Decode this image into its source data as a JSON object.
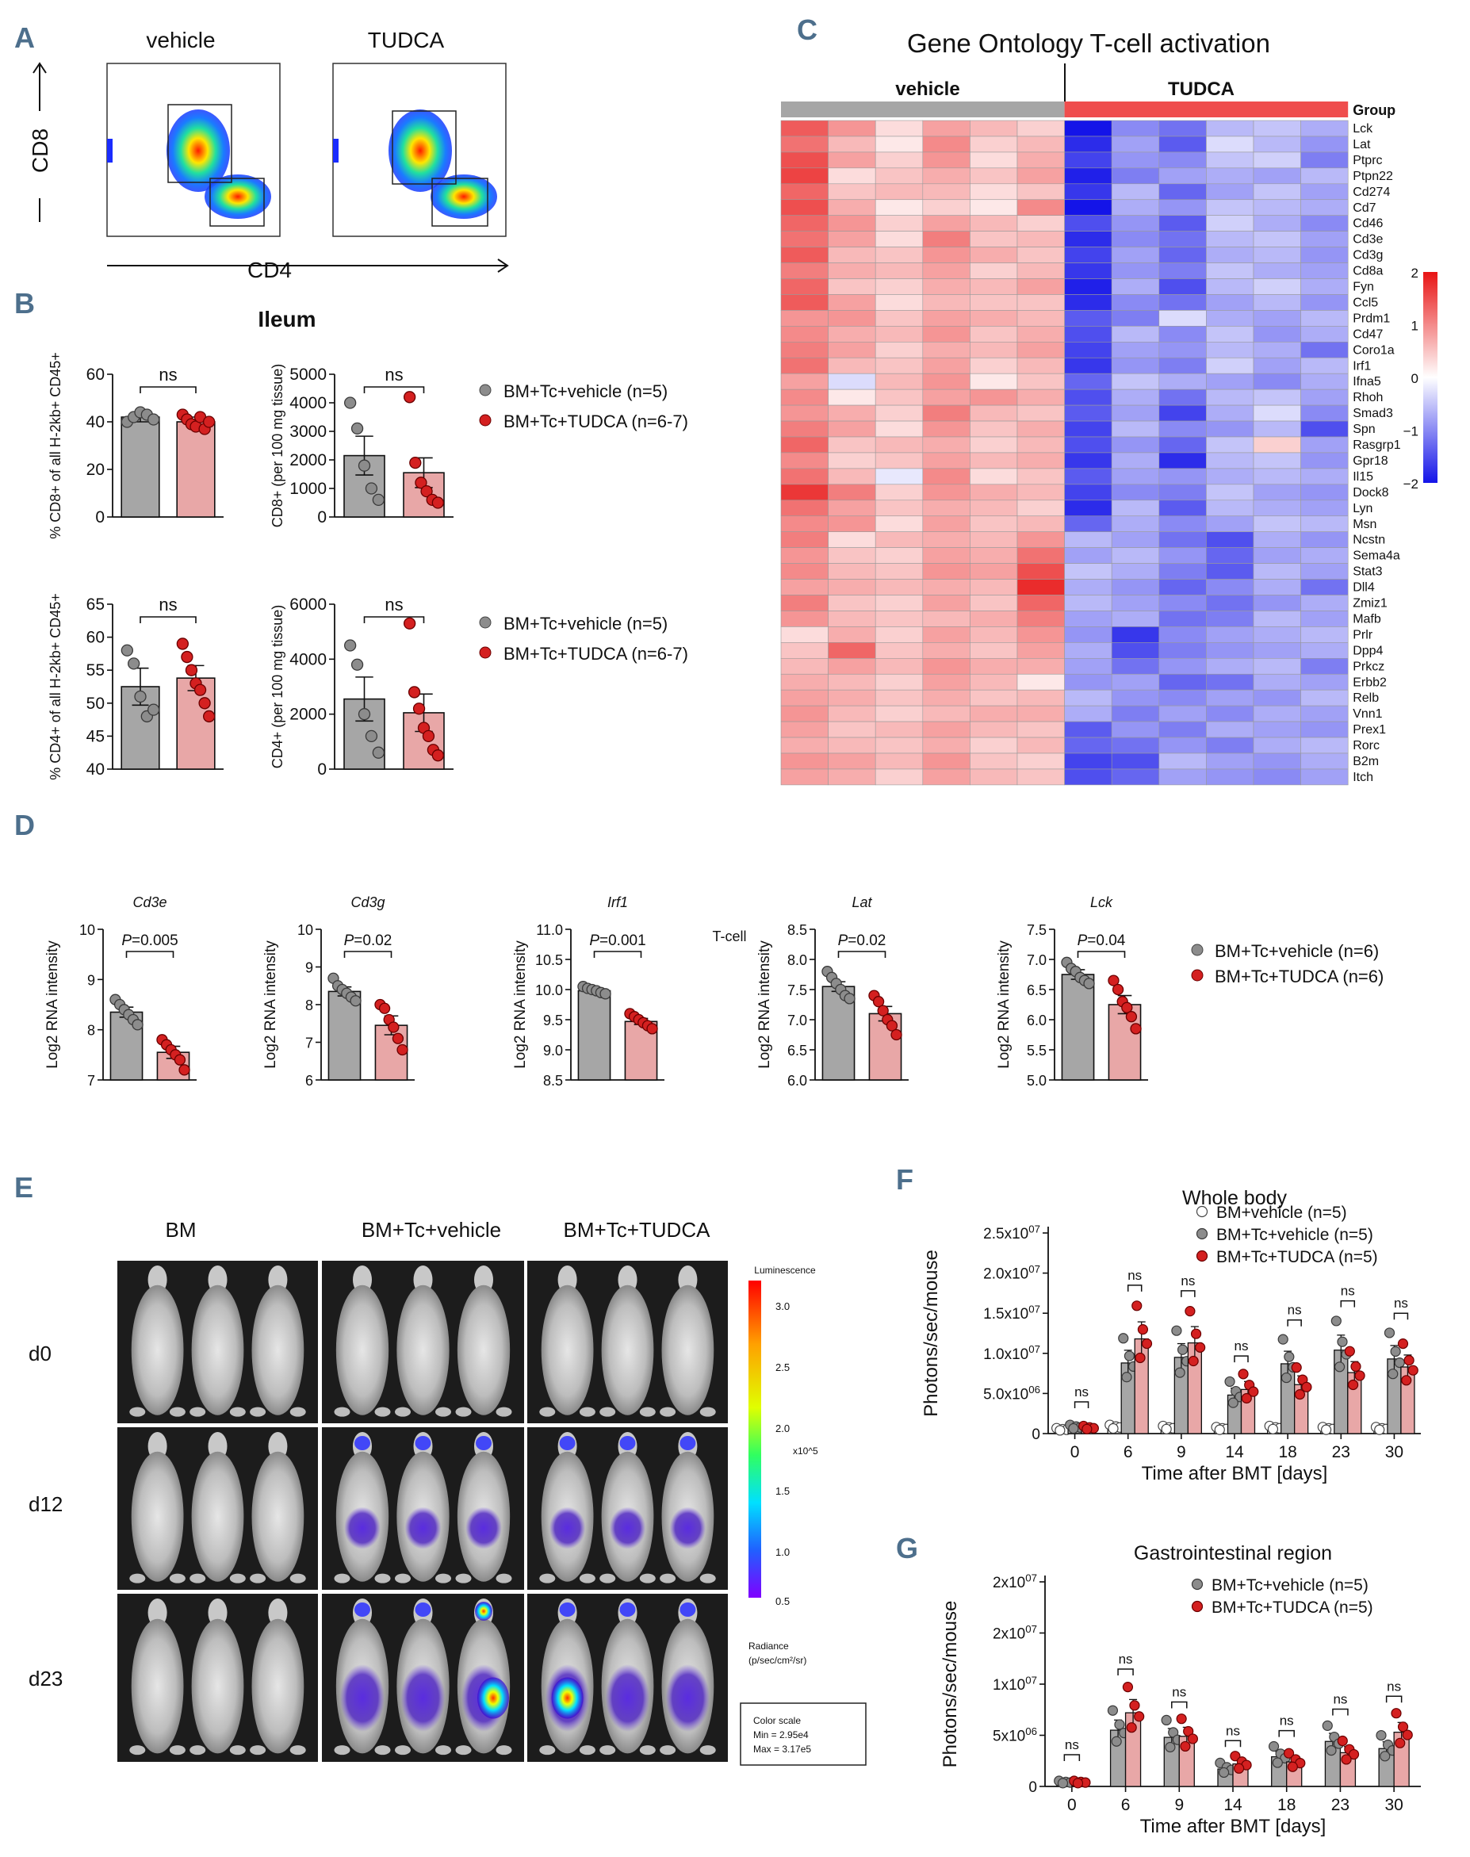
{
  "panel_letters": [
    "A",
    "B",
    "C",
    "D",
    "E",
    "F",
    "G"
  ],
  "colors": {
    "vehicle": "#a6a6a6",
    "tudca": "#e8a7a7",
    "dot_vehicle": "#8c8c8c",
    "dot_tudca": "#d42020",
    "letter": "#4d6f8c"
  },
  "panelA": {
    "labels": [
      "vehicle",
      "TUDCA"
    ],
    "xaxis": "CD4",
    "yaxis": "CD8"
  },
  "panelB": {
    "title": "Ileum",
    "legend_top": [
      "BM+Tc+vehicle (n=5)",
      "BM+Tc+TUDCA (n=6-7)"
    ],
    "legend_bottom": [
      "BM+Tc+vehicle (n=5)",
      "BM+Tc+TUDCA (n=6-7)"
    ]
  },
  "chart_data": [
    {
      "id": "B1",
      "type": "bar",
      "title": "",
      "ylabel": "% CD8+ of all H-2kb+ CD45+",
      "ylim": [
        0,
        60
      ],
      "yticks": [
        0,
        20,
        40,
        60
      ],
      "categories": [
        "BM+Tc+vehicle",
        "BM+Tc+TUDCA"
      ],
      "values": [
        42,
        40
      ],
      "errors": [
        2,
        2
      ],
      "points": [
        [
          40,
          42,
          44,
          43,
          41
        ],
        [
          43,
          41,
          39,
          38,
          42,
          37,
          40
        ]
      ],
      "sig": "ns"
    },
    {
      "id": "B2",
      "type": "bar",
      "title": "",
      "ylabel": "CD8+ (per 100 mg tissue)",
      "ylim": [
        0,
        5000
      ],
      "yticks": [
        0,
        1000,
        2000,
        3000,
        4000,
        5000
      ],
      "categories": [
        "BM+Tc+vehicle",
        "BM+Tc+TUDCA"
      ],
      "values": [
        2150,
        1550
      ],
      "errors": [
        680,
        520
      ],
      "points": [
        [
          4000,
          3100,
          1800,
          1000,
          600
        ],
        [
          4200,
          1900,
          1200,
          900,
          600,
          500
        ]
      ],
      "sig": "ns"
    },
    {
      "id": "B3",
      "type": "bar",
      "title": "",
      "ylabel": "% CD4+ of all H-2kb+ CD45+",
      "ylim": [
        40,
        65
      ],
      "yticks": [
        40,
        45,
        50,
        55,
        60,
        65
      ],
      "categories": [
        "BM+Tc+vehicle",
        "BM+Tc+TUDCA"
      ],
      "values": [
        52.5,
        53.8
      ],
      "errors": [
        2.8,
        1.9
      ],
      "points": [
        [
          58,
          56,
          51,
          48,
          49
        ],
        [
          59,
          57,
          55,
          53,
          52,
          50,
          48
        ]
      ],
      "sig": "ns"
    },
    {
      "id": "B4",
      "type": "bar",
      "title": "",
      "ylabel": "CD4+ (per 100 mg tissue)",
      "ylim": [
        0,
        6000
      ],
      "yticks": [
        0,
        2000,
        4000,
        6000
      ],
      "categories": [
        "BM+Tc+vehicle",
        "BM+Tc+TUDCA"
      ],
      "values": [
        2550,
        2050
      ],
      "errors": [
        800,
        680
      ],
      "points": [
        [
          4500,
          3800,
          2000,
          1200,
          600
        ],
        [
          5300,
          2800,
          2200,
          1500,
          1200,
          700,
          500
        ]
      ],
      "sig": "ns"
    },
    {
      "id": "C",
      "type": "heatmap",
      "title": "Gene Ontology T-cell activation",
      "groups": [
        "vehicle",
        "TUDCA"
      ],
      "group_header": "Group",
      "rows": [
        "Lck",
        "Lat",
        "Ptprc",
        "Ptpn22",
        "Cd274",
        "Cd7",
        "Cd46",
        "Cd3e",
        "Cd3g",
        "Cd8a",
        "Fyn",
        "Ccl5",
        "Prdm1",
        "Cd47",
        "Coro1a",
        "Irf1",
        "Ifna5",
        "Rhoh",
        "Smad3",
        "Spn",
        "Rasgrp1",
        "Gpr18",
        "Il15",
        "Dock8",
        "Lyn",
        "Msn",
        "Ncstn",
        "Sema4a",
        "Stat3",
        "Dll4",
        "Zmiz1",
        "Mafb",
        "Prlr",
        "Dpp4",
        "Prkcz",
        "Erbb2",
        "Relb",
        "Vnn1",
        "Prex1",
        "Rorc",
        "B2m",
        "Itch"
      ],
      "colorbar": {
        "min": -2,
        "max": 2,
        "ticks": [
          "2",
          "1",
          "0",
          "−1",
          "−2"
        ]
      },
      "values": [
        [
          1.4,
          0.9,
          0.3,
          0.8,
          0.6,
          0.4,
          -2.0,
          -1.0,
          -1.2,
          -0.6,
          -0.5,
          -0.7
        ],
        [
          1.2,
          0.6,
          0.2,
          1.0,
          0.4,
          0.6,
          -1.8,
          -0.8,
          -1.4,
          -0.3,
          -0.6,
          -0.9
        ],
        [
          1.5,
          0.8,
          0.4,
          0.9,
          0.3,
          0.7,
          -1.6,
          -0.9,
          -1.0,
          -0.5,
          -0.4,
          -1.1
        ],
        [
          1.6,
          0.3,
          0.5,
          0.7,
          0.5,
          0.8,
          -1.9,
          -1.1,
          -0.8,
          -0.7,
          -0.8,
          -0.6
        ],
        [
          1.3,
          0.5,
          0.6,
          0.6,
          0.3,
          0.5,
          -1.7,
          -0.6,
          -1.3,
          -0.8,
          -0.5,
          -0.8
        ],
        [
          1.5,
          0.7,
          0.2,
          0.4,
          0.2,
          1.0,
          -2.0,
          -0.7,
          -0.9,
          -0.5,
          -0.6,
          -0.7
        ],
        [
          1.3,
          0.9,
          0.4,
          0.8,
          0.6,
          0.4,
          -1.5,
          -0.9,
          -1.4,
          -0.4,
          -0.7,
          -1.0
        ],
        [
          1.2,
          0.8,
          0.3,
          1.1,
          0.5,
          0.6,
          -1.8,
          -1.0,
          -1.2,
          -0.6,
          -0.5,
          -0.8
        ],
        [
          1.4,
          0.6,
          0.5,
          0.9,
          0.7,
          0.5,
          -1.6,
          -0.8,
          -1.3,
          -0.7,
          -0.6,
          -0.9
        ],
        [
          1.1,
          0.7,
          0.6,
          0.8,
          0.4,
          0.6,
          -1.7,
          -0.9,
          -1.1,
          -0.5,
          -0.7,
          -0.8
        ],
        [
          1.3,
          0.5,
          0.4,
          0.7,
          0.6,
          0.8,
          -1.9,
          -0.7,
          -1.5,
          -0.6,
          -0.4,
          -0.7
        ],
        [
          1.4,
          0.8,
          0.3,
          0.6,
          0.5,
          0.5,
          -1.8,
          -1.0,
          -1.2,
          -0.8,
          -0.6,
          -0.9
        ],
        [
          0.9,
          0.9,
          0.5,
          0.8,
          0.7,
          0.6,
          -1.4,
          -1.1,
          -0.3,
          -0.7,
          -0.8,
          -0.6
        ],
        [
          1.0,
          0.7,
          0.6,
          0.9,
          0.5,
          0.7,
          -1.5,
          -0.6,
          -1.0,
          -0.5,
          -0.9,
          -0.7
        ],
        [
          1.1,
          0.8,
          0.4,
          0.7,
          0.6,
          0.8,
          -1.6,
          -0.8,
          -0.9,
          -0.6,
          -0.7,
          -1.2
        ],
        [
          1.2,
          0.6,
          0.5,
          0.8,
          0.4,
          0.6,
          -1.7,
          -0.9,
          -1.1,
          -0.4,
          -0.8,
          -0.6
        ],
        [
          0.8,
          -0.3,
          0.6,
          0.9,
          0.2,
          0.5,
          -1.3,
          -0.5,
          -0.7,
          -0.8,
          -1.0,
          -0.7
        ],
        [
          1.0,
          0.2,
          0.5,
          0.8,
          0.9,
          0.7,
          -1.5,
          -0.7,
          -1.2,
          -0.6,
          -0.5,
          -0.8
        ],
        [
          0.9,
          0.7,
          0.4,
          1.1,
          0.6,
          0.5,
          -1.4,
          -0.8,
          -1.6,
          -0.7,
          -0.3,
          -1.0
        ],
        [
          1.1,
          0.8,
          0.3,
          0.9,
          0.5,
          0.7,
          -1.6,
          -0.6,
          -1.0,
          -0.9,
          -0.6,
          -1.5
        ],
        [
          1.3,
          0.5,
          0.6,
          0.7,
          0.4,
          0.6,
          -1.5,
          -0.9,
          -1.3,
          -0.5,
          0.4,
          -0.8
        ],
        [
          1.0,
          0.4,
          0.5,
          0.8,
          0.6,
          0.7,
          -1.7,
          -0.7,
          -1.8,
          -0.6,
          -0.5,
          -0.9
        ],
        [
          1.2,
          0.6,
          -0.2,
          1.0,
          0.3,
          0.5,
          -1.4,
          -0.8,
          -0.9,
          -0.7,
          -0.6,
          -0.7
        ],
        [
          1.7,
          1.1,
          0.4,
          0.9,
          0.7,
          0.6,
          -1.6,
          -1.0,
          -1.1,
          -0.5,
          -0.8,
          -0.9
        ],
        [
          1.2,
          0.8,
          0.5,
          0.7,
          0.6,
          0.4,
          -1.8,
          -0.6,
          -1.4,
          -0.6,
          -0.7,
          -0.8
        ],
        [
          1.0,
          0.9,
          0.3,
          0.8,
          0.5,
          0.6,
          -1.3,
          -0.7,
          -1.0,
          -0.8,
          -0.5,
          -0.6
        ],
        [
          1.1,
          0.3,
          0.6,
          0.7,
          0.6,
          0.9,
          -0.6,
          -0.8,
          -1.2,
          -1.5,
          -0.7,
          -0.9
        ],
        [
          0.9,
          0.5,
          0.4,
          0.8,
          0.7,
          1.2,
          -0.8,
          -0.6,
          -0.9,
          -1.3,
          -0.8,
          -0.7
        ],
        [
          1.0,
          0.6,
          0.5,
          0.9,
          0.8,
          1.5,
          -0.5,
          -0.7,
          -1.1,
          -1.4,
          -0.6,
          -0.8
        ],
        [
          0.8,
          0.7,
          0.6,
          0.7,
          0.6,
          1.8,
          -0.7,
          -0.9,
          -1.3,
          -1.0,
          -0.7,
          -1.2
        ],
        [
          1.1,
          0.5,
          0.4,
          0.8,
          0.5,
          1.3,
          -0.6,
          -0.8,
          -1.0,
          -1.2,
          -0.9,
          -0.7
        ],
        [
          0.9,
          0.6,
          0.5,
          0.6,
          0.7,
          1.1,
          -0.8,
          -0.7,
          -1.2,
          -1.1,
          -0.6,
          -0.8
        ],
        [
          0.3,
          0.7,
          0.4,
          0.8,
          0.6,
          0.9,
          -0.9,
          -1.7,
          -1.0,
          -0.8,
          -0.7,
          -0.6
        ],
        [
          0.5,
          1.3,
          0.5,
          0.7,
          0.5,
          0.8,
          -0.7,
          -1.5,
          -1.1,
          -0.9,
          -0.8,
          -0.7
        ],
        [
          0.6,
          0.8,
          0.6,
          0.9,
          0.7,
          0.7,
          -0.8,
          -1.2,
          -0.9,
          -0.7,
          -0.6,
          -1.1
        ],
        [
          0.7,
          0.6,
          0.4,
          0.8,
          0.6,
          0.2,
          -0.9,
          -0.8,
          -1.3,
          -1.2,
          -0.7,
          -0.8
        ],
        [
          0.8,
          0.7,
          0.5,
          0.7,
          0.5,
          0.6,
          -0.6,
          -0.9,
          -1.0,
          -0.8,
          -0.9,
          -0.6
        ],
        [
          0.9,
          0.6,
          0.4,
          0.6,
          0.7,
          0.7,
          -0.7,
          -1.1,
          -0.8,
          -1.0,
          -0.7,
          -0.8
        ],
        [
          0.8,
          0.5,
          0.6,
          0.8,
          0.6,
          0.5,
          -1.4,
          -0.9,
          -1.1,
          -0.7,
          -0.8,
          -0.9
        ],
        [
          0.7,
          0.6,
          0.5,
          0.7,
          0.4,
          0.6,
          -1.3,
          -1.2,
          -0.9,
          -1.1,
          -0.7,
          -0.6
        ],
        [
          0.9,
          0.8,
          0.6,
          0.9,
          0.5,
          0.4,
          -1.6,
          -1.5,
          -0.6,
          -0.8,
          -0.9,
          -0.7
        ],
        [
          0.8,
          0.7,
          0.4,
          0.8,
          0.6,
          0.5,
          -1.5,
          -1.3,
          -0.8,
          -0.9,
          -1.0,
          -0.8
        ]
      ]
    },
    {
      "id": "D1",
      "type": "bar",
      "title": "Cd3e",
      "ylabel": "Log2 RNA intensity",
      "ylim": [
        7,
        10
      ],
      "yticks": [
        7,
        8,
        9,
        10
      ],
      "categories": [
        "BM+Tc+vehicle",
        "BM+Tc+TUDCA"
      ],
      "values": [
        8.35,
        7.55
      ],
      "errors": [
        0.1,
        0.12
      ],
      "points": [
        [
          8.6,
          8.5,
          8.4,
          8.3,
          8.2,
          8.1
        ],
        [
          7.8,
          7.7,
          7.6,
          7.5,
          7.4,
          7.2
        ]
      ],
      "sig": "P=0.005"
    },
    {
      "id": "D2",
      "type": "bar",
      "title": "Cd3g",
      "ylabel": "Log2 RNA intensity",
      "ylim": [
        6,
        10
      ],
      "yticks": [
        6,
        7,
        8,
        9,
        10
      ],
      "categories": [
        "BM+Tc+vehicle",
        "BM+Tc+TUDCA"
      ],
      "values": [
        8.35,
        7.45
      ],
      "errors": [
        0.12,
        0.25
      ],
      "points": [
        [
          8.7,
          8.5,
          8.4,
          8.3,
          8.2,
          8.1
        ],
        [
          8.0,
          7.9,
          7.6,
          7.4,
          7.1,
          6.8
        ]
      ],
      "sig": "P=0.02"
    },
    {
      "id": "D3",
      "type": "bar",
      "title": "Irf1",
      "ylabel": "Log2 RNA intensity",
      "ylim": [
        8.5,
        11.0
      ],
      "yticks": [
        8.5,
        9.0,
        9.5,
        10.0,
        10.5,
        11.0
      ],
      "categories": [
        "BM+Tc+vehicle",
        "BM+Tc+TUDCA"
      ],
      "values": [
        9.98,
        9.47
      ],
      "errors": [
        0.03,
        0.05
      ],
      "points": [
        [
          10.05,
          10.02,
          10.0,
          9.98,
          9.95,
          9.93
        ],
        [
          9.6,
          9.55,
          9.5,
          9.45,
          9.4,
          9.35
        ]
      ],
      "sig": "P=0.001"
    },
    {
      "id": "D4",
      "type": "bar",
      "title": "Lat",
      "ylabel": "Log2 RNA intensity",
      "ylim": [
        6.0,
        8.5
      ],
      "yticks": [
        6.0,
        6.5,
        7.0,
        7.5,
        8.0,
        8.5
      ],
      "categories": [
        "BM+Tc+vehicle",
        "BM+Tc+TUDCA"
      ],
      "values": [
        7.55,
        7.1
      ],
      "errors": [
        0.08,
        0.12
      ],
      "points": [
        [
          7.8,
          7.7,
          7.6,
          7.5,
          7.4,
          7.35
        ],
        [
          7.4,
          7.3,
          7.15,
          7.0,
          6.9,
          6.75
        ]
      ],
      "sig": "P=0.02"
    },
    {
      "id": "D5",
      "type": "bar",
      "title": "Lck",
      "ylabel": "Log2 RNA intensity",
      "ylim": [
        5.0,
        7.5
      ],
      "yticks": [
        5.0,
        5.5,
        6.0,
        6.5,
        7.0,
        7.5
      ],
      "categories": [
        "BM+Tc+vehicle",
        "BM+Tc+TUDCA"
      ],
      "values": [
        6.75,
        6.25
      ],
      "errors": [
        0.08,
        0.15
      ],
      "points": [
        [
          6.95,
          6.85,
          6.8,
          6.7,
          6.65,
          6.6
        ],
        [
          6.65,
          6.5,
          6.3,
          6.2,
          6.05,
          5.85
        ]
      ],
      "sig": "P=0.04"
    },
    {
      "id": "F",
      "type": "bar",
      "title": "Whole body",
      "xlabel": "Time after BMT [days]",
      "ylabel": "Photons/sec/mouse",
      "ylim": [
        0,
        25000000
      ],
      "ytick_labels": [
        "0",
        "5.0x10^06",
        "1.0x10^07",
        "1.5x10^07",
        "2.0x10^07",
        "2.5x10^07"
      ],
      "categories": [
        "0",
        "6",
        "9",
        "14",
        "18",
        "23",
        "30"
      ],
      "series": [
        {
          "name": "BM+vehicle (n=5)",
          "values": [
            500000,
            800000,
            700000,
            600000,
            700000,
            600000,
            600000
          ]
        },
        {
          "name": "BM+Tc+vehicle (n=5)",
          "values": [
            800000,
            8800000,
            9500000,
            4800000,
            8700000,
            10400000,
            9300000
          ]
        },
        {
          "name": "BM+Tc+TUDCA (n=5)",
          "values": [
            700000,
            11800000,
            11300000,
            5500000,
            6100000,
            7600000,
            8300000
          ]
        }
      ],
      "sig": [
        "ns",
        "ns",
        "ns",
        "ns",
        "ns",
        "ns",
        "ns"
      ]
    },
    {
      "id": "G",
      "type": "bar",
      "title": "Gastrointestinal region",
      "xlabel": "Time after BMT [days]",
      "ylabel": "Photons/sec/mouse",
      "ylim": [
        0,
        20000000
      ],
      "ytick_labels": [
        "0",
        "5x10^06",
        "1x10^07",
        "2x10^07",
        "2x10^07"
      ],
      "categories": [
        "0",
        "6",
        "9",
        "14",
        "18",
        "23",
        "30"
      ],
      "series": [
        {
          "name": "BM+Tc+vehicle (n=5)",
          "values": [
            400000,
            5500000,
            4800000,
            1700000,
            2900000,
            4400000,
            3700000
          ]
        },
        {
          "name": "BM+Tc+TUDCA (n=5)",
          "values": [
            400000,
            7200000,
            4900000,
            2200000,
            2400000,
            3300000,
            5300000
          ]
        }
      ],
      "sig": [
        "ns",
        "ns",
        "ns",
        "ns",
        "ns",
        "ns",
        "ns"
      ]
    }
  ],
  "panelD": {
    "legend": [
      "BM+Tc+vehicle (n=6)",
      "BM+Tc+TUDCA (n=6)"
    ],
    "stray_label": "T-cell"
  },
  "panelE": {
    "columns": [
      "BM",
      "BM+Tc+vehicle",
      "BM+Tc+TUDCA"
    ],
    "rows": [
      "d0",
      "d12",
      "d23"
    ],
    "luminescence": "Luminescence",
    "scale_factor": "x10^5",
    "radiance": "Radiance",
    "radiance_unit": "(p/sec/cm²/sr)",
    "colorbar_ticks": [
      "3.0",
      "2.5",
      "2.0",
      "1.5",
      "1.0",
      "0.5"
    ],
    "colorscale_box": [
      "Color scale",
      "Min = 2.95e4",
      "Max = 3.17e5"
    ]
  }
}
